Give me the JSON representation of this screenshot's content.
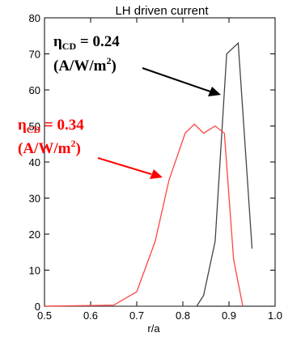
{
  "chart_data": {
    "type": "line",
    "title": "LH driven current",
    "xlabel": "r/a",
    "ylabel": "",
    "xlim": [
      0.5,
      1.0
    ],
    "ylim": [
      0,
      80
    ],
    "xticks": [
      "0.5",
      "0.6",
      "0.7",
      "0.8",
      "0.9",
      "1.0"
    ],
    "yticks": [
      "0",
      "10",
      "20",
      "30",
      "40",
      "50",
      "60",
      "70",
      "80"
    ],
    "grid": false,
    "series": [
      {
        "color": "#444444",
        "x": [
          0.5,
          0.83,
          0.845,
          0.87,
          0.895,
          0.92,
          0.95
        ],
        "y": [
          0,
          0,
          3,
          18,
          70,
          73,
          16
        ]
      },
      {
        "color": "#ff4444",
        "x": [
          0.5,
          0.65,
          0.7,
          0.74,
          0.77,
          0.805,
          0.825,
          0.845,
          0.87,
          0.89,
          0.91,
          0.93
        ],
        "y": [
          0,
          0.3,
          4,
          18,
          35,
          48,
          50.5,
          48,
          50,
          48,
          13,
          0
        ]
      }
    ],
    "annotations": [
      {
        "greek": "η",
        "subscript": "CD",
        "value": " = 0.24",
        "unit_main": "(A/W/m",
        "unit_sup": "2",
        "unit_end": ")",
        "color": "#000000"
      },
      {
        "greek": "η",
        "subscript": "CD",
        "value": " = 0.34",
        "unit_main": "(A/W/m",
        "unit_sup": "2",
        "unit_end": ")",
        "color": "#ff0000"
      }
    ]
  }
}
